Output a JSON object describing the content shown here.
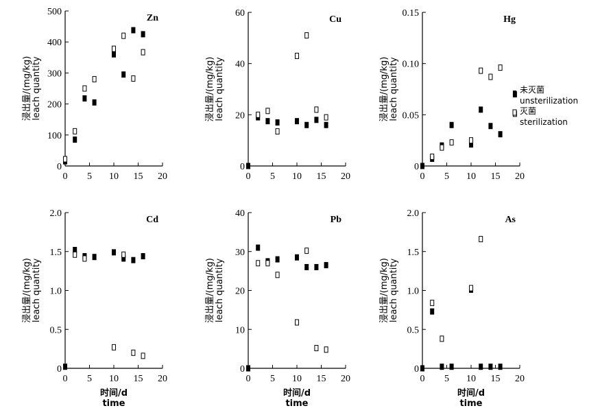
{
  "colors": {
    "axis": "#000000",
    "marker_fill": "#000000",
    "marker_open_fill": "#ffffff"
  },
  "legend": {
    "unsterilized_cn": "未灭菌",
    "unsterilized_en": "unsterilization",
    "sterilized_cn": "灭菌",
    "sterilized_en": "sterilization"
  },
  "chart_data": [
    {
      "type": "scatter",
      "title": "Zn",
      "xlabel_cn": "",
      "xlabel_en": "",
      "ylabel_cn": "浸出量/(mg/kg)",
      "ylabel_en": "leach quantity",
      "xlim": [
        0,
        20
      ],
      "ylim": [
        0,
        500
      ],
      "xticks": [
        0,
        5,
        10,
        15,
        20
      ],
      "yticks": [
        0,
        100,
        200,
        300,
        400,
        500
      ],
      "series": [
        {
          "name": "unsterilization",
          "marker": "filled",
          "x": [
            0,
            2,
            4,
            6,
            10,
            12,
            14,
            16
          ],
          "y": [
            15,
            85,
            218,
            205,
            360,
            295,
            438,
            425
          ]
        },
        {
          "name": "sterilization",
          "marker": "open",
          "x": [
            0,
            2,
            4,
            6,
            10,
            12,
            14,
            16
          ],
          "y": [
            22,
            112,
            250,
            280,
            378,
            420,
            282,
            367
          ]
        }
      ]
    },
    {
      "type": "scatter",
      "title": "Cu",
      "xlabel_cn": "",
      "xlabel_en": "",
      "ylabel_cn": "浸出量/(mg/kg)",
      "ylabel_en": "leach quantity",
      "xlim": [
        0,
        20
      ],
      "ylim": [
        0,
        60
      ],
      "xticks": [
        0,
        5,
        10,
        15,
        20
      ],
      "yticks": [
        0,
        20,
        40,
        60
      ],
      "series": [
        {
          "name": "unsterilization",
          "marker": "filled",
          "x": [
            0,
            2,
            4,
            6,
            10,
            12,
            14,
            16
          ],
          "y": [
            0,
            19,
            17.5,
            17,
            17.5,
            16,
            18,
            16
          ]
        },
        {
          "name": "sterilization",
          "marker": "open",
          "x": [
            2,
            4,
            6,
            10,
            12,
            14,
            16
          ],
          "y": [
            20,
            21.5,
            13.5,
            43,
            51,
            22,
            19
          ]
        }
      ]
    },
    {
      "type": "scatter",
      "title": "Hg",
      "xlabel_cn": "",
      "xlabel_en": "",
      "ylabel_cn": "浸出量/(mg/kg)",
      "ylabel_en": "leach quantity",
      "xlim": [
        0,
        20
      ],
      "ylim": [
        0,
        0.15
      ],
      "xticks": [
        0,
        5,
        10,
        15,
        20
      ],
      "yticks": [
        0,
        0.05,
        0.1,
        0.15
      ],
      "ytick_labels": [
        "0",
        "0.05",
        "0.10",
        "0.15"
      ],
      "series": [
        {
          "name": "unsterilization",
          "marker": "filled",
          "x": [
            0,
            2,
            4,
            6,
            10,
            12,
            14,
            16,
            19
          ],
          "y": [
            0,
            0.007,
            0.02,
            0.04,
            0.021,
            0.055,
            0.039,
            0.031,
            0.07
          ]
        },
        {
          "name": "sterilization",
          "marker": "open",
          "x": [
            2,
            4,
            6,
            10,
            12,
            14,
            16,
            19
          ],
          "y": [
            0.009,
            0.018,
            0.023,
            0.025,
            0.093,
            0.087,
            0.096,
            0.051
          ]
        }
      ]
    },
    {
      "type": "scatter",
      "title": "Cd",
      "xlabel_cn": "时间/d",
      "xlabel_en": "time",
      "ylabel_cn": "浸出量/(mg/kg)",
      "ylabel_en": "leach quantity",
      "xlim": [
        0,
        20
      ],
      "ylim": [
        0,
        2.0
      ],
      "xticks": [
        0,
        5,
        10,
        15,
        20
      ],
      "yticks": [
        0,
        0.5,
        1.0,
        1.5,
        2.0
      ],
      "ytick_labels": [
        "0",
        "0.5",
        "1.0",
        "1.5",
        "2.0"
      ],
      "series": [
        {
          "name": "unsterilization",
          "marker": "filled",
          "x": [
            0,
            2,
            4,
            6,
            10,
            12,
            14,
            16
          ],
          "y": [
            0.02,
            1.52,
            1.44,
            1.43,
            1.49,
            1.41,
            1.39,
            1.44
          ]
        },
        {
          "name": "sterilization",
          "marker": "open",
          "x": [
            2,
            4,
            10,
            12,
            14,
            16
          ],
          "y": [
            1.46,
            1.41,
            0.27,
            1.46,
            0.2,
            0.16
          ]
        }
      ]
    },
    {
      "type": "scatter",
      "title": "Pb",
      "xlabel_cn": "时间/d",
      "xlabel_en": "time",
      "ylabel_cn": "浸出量/(mg/kg)",
      "ylabel_en": "leach quantity",
      "xlim": [
        0,
        20
      ],
      "ylim": [
        0,
        40
      ],
      "xticks": [
        0,
        5,
        10,
        15,
        20
      ],
      "yticks": [
        0,
        10,
        20,
        30,
        40
      ],
      "series": [
        {
          "name": "unsterilization",
          "marker": "filled",
          "x": [
            0,
            2,
            4,
            6,
            10,
            12,
            14,
            16
          ],
          "y": [
            0,
            31,
            27.5,
            28,
            28.5,
            26,
            26,
            26.5
          ]
        },
        {
          "name": "sterilization",
          "marker": "open",
          "x": [
            2,
            4,
            6,
            10,
            12,
            14,
            16
          ],
          "y": [
            27,
            27,
            24,
            11.8,
            30.2,
            5.2,
            4.8
          ]
        }
      ]
    },
    {
      "type": "scatter",
      "title": "As",
      "xlabel_cn": "时间/d",
      "xlabel_en": "time",
      "ylabel_cn": "浸出量/(mg/kg)",
      "ylabel_en": "leach quantity",
      "xlim": [
        0,
        20
      ],
      "ylim": [
        0,
        2.0
      ],
      "xticks": [
        0,
        5,
        10,
        15,
        20
      ],
      "yticks": [
        0,
        0.5,
        1.0,
        1.5,
        2.0
      ],
      "ytick_labels": [
        "0",
        "0.5",
        "1.0",
        "1.5",
        "2.0"
      ],
      "series": [
        {
          "name": "unsterilization",
          "marker": "filled",
          "x": [
            0,
            2,
            4,
            6,
            10,
            12,
            14,
            16
          ],
          "y": [
            0,
            0.73,
            0.02,
            0.02,
            1.01,
            0.02,
            0.02,
            0.02
          ]
        },
        {
          "name": "sterilization",
          "marker": "open",
          "x": [
            2,
            4,
            10,
            12
          ],
          "y": [
            0.84,
            0.38,
            1.03,
            1.66
          ]
        }
      ]
    }
  ]
}
